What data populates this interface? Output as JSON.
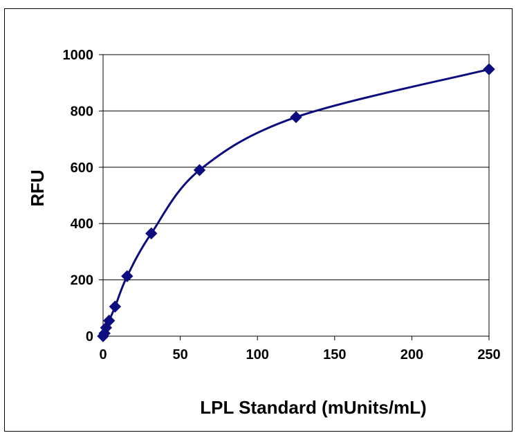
{
  "chart_data": {
    "type": "line",
    "title": "",
    "xlabel": "LPL Standard (mUnits/mL)",
    "ylabel": "RFU",
    "xlim": [
      0,
      250
    ],
    "ylim": [
      0,
      1000
    ],
    "x_ticks": [
      0,
      50,
      100,
      150,
      200,
      250
    ],
    "x_tick_labels": [
      "0",
      "50",
      "100",
      "150",
      "200",
      "250"
    ],
    "y_ticks": [
      0,
      200,
      400,
      600,
      800,
      1000
    ],
    "y_tick_labels": [
      "0",
      "200",
      "400",
      "600",
      "800",
      "1000"
    ],
    "grid": "horizontal",
    "legend": "none",
    "line_style": "smoothed",
    "marker": "diamond",
    "series": [
      {
        "color": "#0d0d80",
        "x": [
          0,
          0.98,
          1.95,
          3.9,
          7.8,
          15.6,
          31.25,
          62.5,
          125,
          250
        ],
        "y": [
          0,
          10,
          30,
          55,
          105,
          213,
          365,
          590,
          778,
          948
        ]
      }
    ]
  }
}
